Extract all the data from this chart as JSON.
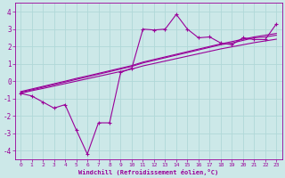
{
  "background_color": "#cce8e8",
  "grid_color": "#b0d8d8",
  "line_color": "#990099",
  "xlabel": "Windchill (Refroidissement éolien,°C)",
  "xlabel_color": "#990099",
  "tick_color": "#990099",
  "xlim": [
    -0.5,
    23.5
  ],
  "ylim": [
    -4.5,
    4.5
  ],
  "yticks": [
    -4,
    -3,
    -2,
    -1,
    0,
    1,
    2,
    3,
    4
  ],
  "xticks": [
    0,
    1,
    2,
    3,
    4,
    5,
    6,
    7,
    8,
    9,
    10,
    11,
    12,
    13,
    14,
    15,
    16,
    17,
    18,
    19,
    20,
    21,
    22,
    23
  ],
  "series1_x": [
    0,
    1,
    2,
    3,
    4,
    5,
    6,
    7,
    8,
    9,
    10,
    11,
    12,
    13,
    14,
    15,
    16,
    17,
    18,
    19,
    20,
    21,
    22,
    23
  ],
  "series1_y": [
    -0.7,
    -0.85,
    -1.2,
    -1.55,
    -1.35,
    -2.8,
    -4.2,
    -2.4,
    -2.4,
    0.5,
    0.75,
    3.0,
    2.95,
    3.0,
    3.85,
    3.0,
    2.5,
    2.55,
    2.2,
    2.1,
    2.5,
    2.4,
    2.4,
    3.3
  ],
  "series2_x": [
    0,
    1,
    2,
    3,
    4,
    5,
    6,
    7,
    8,
    9,
    10,
    11,
    12,
    13,
    14,
    15,
    16,
    17,
    18,
    19,
    20,
    21,
    22,
    23
  ],
  "series2_y": [
    -0.65,
    -0.5,
    -0.35,
    -0.2,
    -0.05,
    0.1,
    0.25,
    0.4,
    0.55,
    0.7,
    0.85,
    1.05,
    1.2,
    1.35,
    1.5,
    1.65,
    1.8,
    1.95,
    2.1,
    2.2,
    2.35,
    2.5,
    2.55,
    2.65
  ],
  "series3_x": [
    0,
    1,
    2,
    3,
    4,
    5,
    6,
    7,
    8,
    9,
    10,
    11,
    12,
    13,
    14,
    15,
    16,
    17,
    18,
    19,
    20,
    21,
    22,
    23
  ],
  "series3_y": [
    -0.7,
    -0.55,
    -0.42,
    -0.28,
    -0.14,
    0.0,
    0.14,
    0.28,
    0.42,
    0.56,
    0.7,
    0.88,
    1.02,
    1.16,
    1.3,
    1.44,
    1.58,
    1.72,
    1.86,
    1.98,
    2.1,
    2.22,
    2.32,
    2.42
  ],
  "series4_x": [
    0,
    1,
    2,
    3,
    4,
    5,
    6,
    7,
    8,
    9,
    10,
    11,
    12,
    13,
    14,
    15,
    16,
    17,
    18,
    19,
    20,
    21,
    22,
    23
  ],
  "series4_y": [
    -0.6,
    -0.45,
    -0.3,
    -0.15,
    0.0,
    0.16,
    0.3,
    0.45,
    0.6,
    0.75,
    0.9,
    1.1,
    1.25,
    1.4,
    1.55,
    1.7,
    1.85,
    2.0,
    2.15,
    2.28,
    2.42,
    2.55,
    2.65,
    2.75
  ]
}
